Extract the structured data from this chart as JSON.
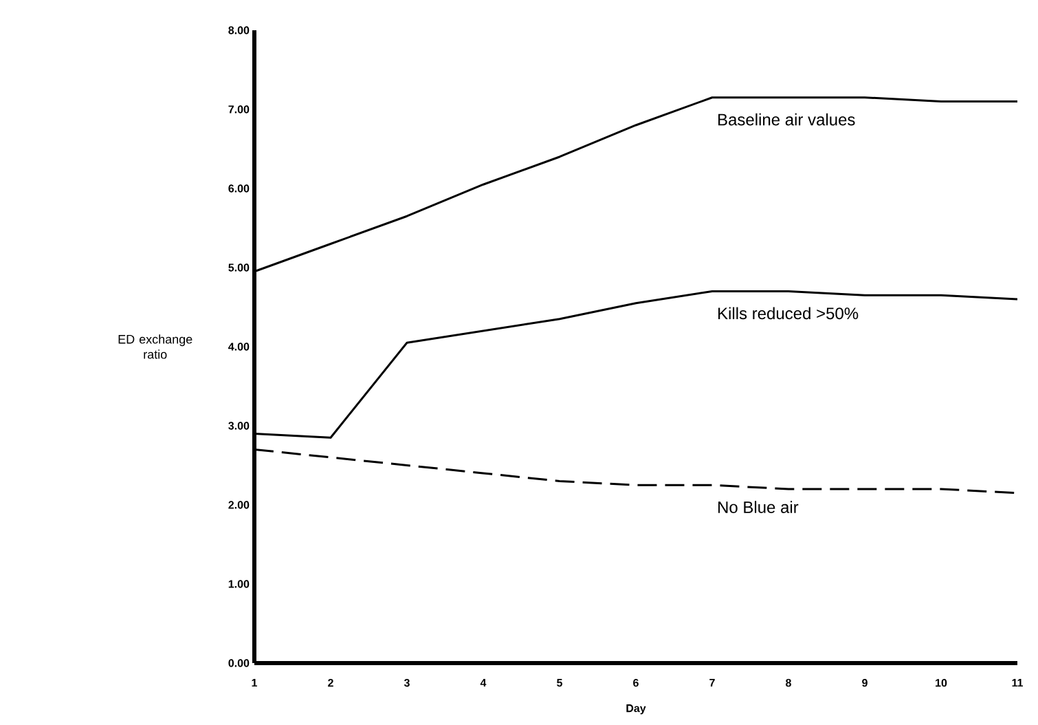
{
  "chart_data": {
    "type": "line",
    "xlabel": "Day",
    "ylabel": "ED exchange ratio",
    "x": [
      1,
      2,
      3,
      4,
      5,
      6,
      7,
      8,
      9,
      10,
      11
    ],
    "series": [
      {
        "name": "Baseline air values",
        "color": "#000000",
        "line_style": "solid",
        "values": [
          4.95,
          5.3,
          5.65,
          6.05,
          6.4,
          6.8,
          7.15,
          7.15,
          7.15,
          7.1,
          7.1
        ]
      },
      {
        "name": "Kills reduced >50%",
        "color": "#000000",
        "line_style": "solid",
        "values": [
          2.9,
          2.85,
          4.05,
          4.2,
          4.35,
          4.55,
          4.7,
          4.7,
          4.65,
          4.65,
          4.6
        ]
      },
      {
        "name": "No Blue air",
        "color": "#000000",
        "line_style": "dashed",
        "values": [
          2.7,
          2.6,
          2.5,
          2.4,
          2.3,
          2.25,
          2.25,
          2.2,
          2.2,
          2.2,
          2.15
        ]
      }
    ],
    "xlim": [
      1,
      11
    ],
    "ylim": [
      0,
      8
    ],
    "xticks": [
      1,
      2,
      3,
      4,
      5,
      6,
      7,
      8,
      9,
      10,
      11
    ],
    "yticks": [
      {
        "value": 0,
        "label": "0.00"
      },
      {
        "value": 1,
        "label": "1.00"
      },
      {
        "value": 2,
        "label": "2.00"
      },
      {
        "value": 3,
        "label": "3.00"
      },
      {
        "value": 4,
        "label": "4.00"
      },
      {
        "value": 5,
        "label": "5.00"
      },
      {
        "value": 6,
        "label": "6.00"
      },
      {
        "value": 7,
        "label": "7.00"
      },
      {
        "value": 8,
        "label": "8.00"
      }
    ],
    "grid": false,
    "legend": false,
    "marker": "none"
  }
}
